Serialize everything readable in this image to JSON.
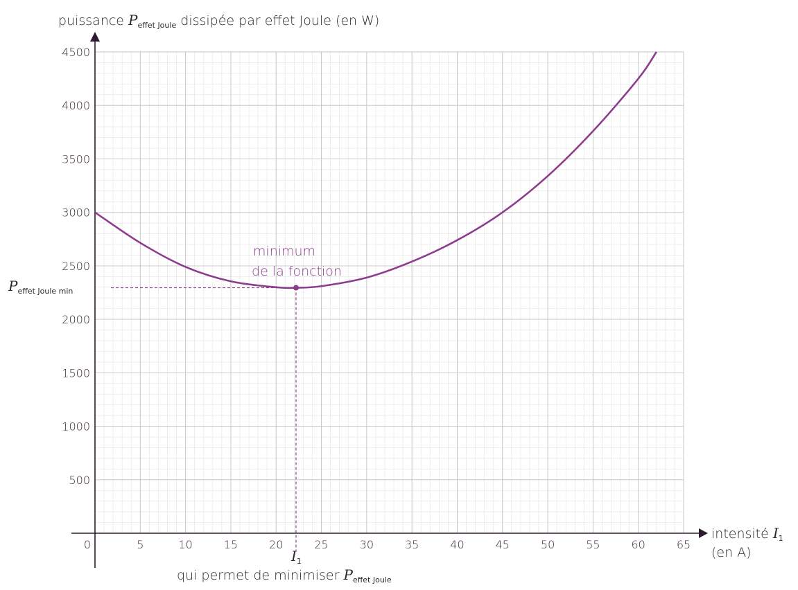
{
  "chart_data": {
    "type": "line",
    "y_label": {
      "prefix": "puissance",
      "symbol": "P",
      "symbol_sub": "effet Joule",
      "suffix": "dissipée par effet Joule (en W)"
    },
    "x_label": {
      "prefix": "intensité",
      "symbol": "I",
      "symbol_sub": "1",
      "unit": "(en A)"
    },
    "xlim": [
      0,
      65
    ],
    "ylim": [
      0,
      4500
    ],
    "x_ticks": [
      0,
      5,
      10,
      15,
      20,
      25,
      30,
      35,
      40,
      45,
      50,
      55,
      60,
      65
    ],
    "y_ticks": [
      500,
      1000,
      1500,
      2000,
      2500,
      3000,
      3500,
      4000,
      4500
    ],
    "x_tick_labels": [
      "0",
      "5",
      "10",
      "15",
      "20",
      "25",
      "30",
      "35",
      "40",
      "45",
      "50",
      "55",
      "60",
      "65"
    ],
    "y_tick_labels": [
      "500",
      "1000",
      "1500",
      "2000",
      "2500",
      "3000",
      "3500",
      "4000",
      "4500"
    ],
    "grid": true,
    "minor_grid_step_x": 1,
    "minor_grid_step_y": 100,
    "series": [
      {
        "color": "#8e3c8e",
        "x": [
          0,
          5,
          10,
          15,
          20,
          22.2,
          25,
          30,
          35,
          40,
          45,
          50,
          55,
          60,
          62
        ],
        "y": [
          3000,
          2715,
          2490,
          2355,
          2300,
          2295,
          2310,
          2390,
          2540,
          2740,
          3000,
          3340,
          3760,
          4250,
          4500
        ]
      }
    ],
    "minimum_point": {
      "x": 22.2,
      "y": 2295,
      "annotation_line1": "minimum",
      "annotation_line2": "de la fonction",
      "y_marker_symbol": "P",
      "y_marker_sub": "effet Joule min",
      "x_marker_symbol": "I",
      "x_marker_sub": "1",
      "x_caption_prefix": "qui permet de minimiser",
      "x_caption_symbol": "P",
      "x_caption_sub": "effet Joule"
    },
    "accent_color": "#8e3c8e",
    "axis_color": "#2e1a2e"
  }
}
